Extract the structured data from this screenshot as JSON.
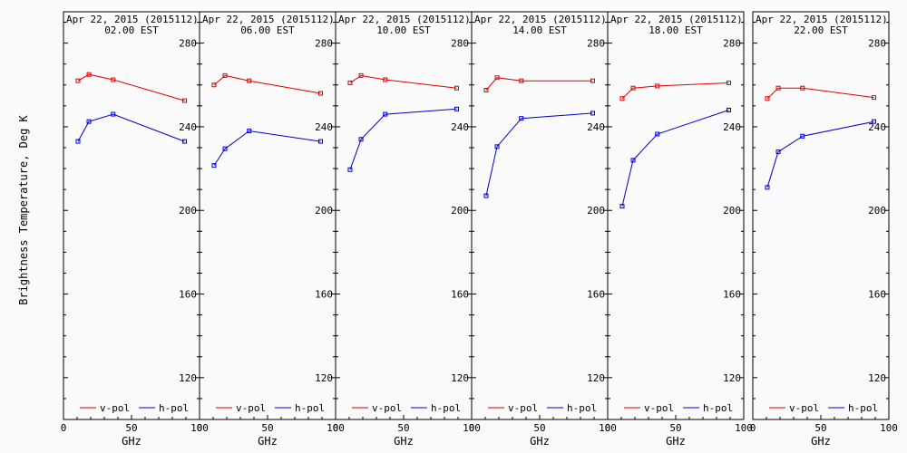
{
  "chart_data": {
    "type": "line",
    "ylabel": "Brightness Temperature, Deg K",
    "xlabel": "GHz",
    "xlim": [
      0,
      100
    ],
    "ylim": [
      100,
      295
    ],
    "xticks": [
      "0",
      "50",
      "100"
    ],
    "xtick_values": [
      0,
      50,
      100
    ],
    "yticks": [
      "120",
      "160",
      "200",
      "240",
      "280"
    ],
    "ytick_values": [
      120,
      160,
      200,
      240,
      280
    ],
    "x": [
      10.65,
      18.7,
      36.5,
      89.0
    ],
    "legend": [
      "v-pol",
      "h-pol"
    ],
    "colors": {
      "v": "#e00000",
      "h": "#0000d0"
    },
    "panels": [
      {
        "title1": "Apr 22, 2015 (2015112)",
        "title2": "02.00 EST",
        "v": [
          262,
          265,
          262.5,
          252.5
        ],
        "h": [
          233,
          242.5,
          246,
          233
        ]
      },
      {
        "title1": "Apr 22, 2015 (2015112)",
        "title2": "06.00 EST",
        "v": [
          260,
          264.5,
          262,
          256
        ],
        "h": [
          221.5,
          229.5,
          238,
          233
        ]
      },
      {
        "title1": "Apr 22, 2015 (2015112)",
        "title2": "10.00 EST",
        "v": [
          261,
          264.5,
          262.5,
          258.5
        ],
        "h": [
          219.5,
          234,
          246,
          248.5
        ]
      },
      {
        "title1": "Apr 22, 2015 (2015112)",
        "title2": "14.00 EST",
        "v": [
          257.5,
          263.5,
          262,
          262
        ],
        "h": [
          207,
          230.5,
          244,
          246.5
        ]
      },
      {
        "title1": "Apr 22, 2015 (2015112)",
        "title2": "18.00 EST",
        "v": [
          253.5,
          258.5,
          259.5,
          261
        ],
        "h": [
          202,
          224,
          236.5,
          248
        ]
      },
      {
        "title1": "Apr 22, 2015 (2015112)",
        "title2": "22.00 EST",
        "v": [
          253.5,
          258.5,
          258.5,
          254
        ],
        "h": [
          211,
          228,
          235.5,
          242.5
        ]
      }
    ]
  }
}
